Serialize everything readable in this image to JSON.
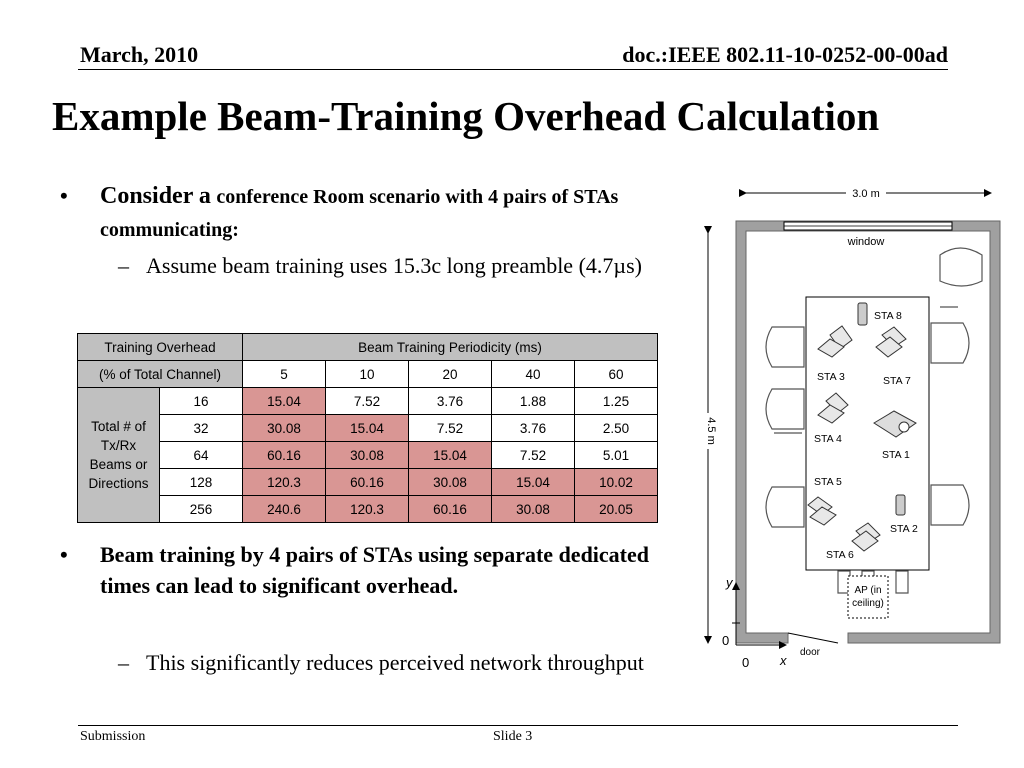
{
  "header": {
    "date": "March, 2010",
    "doc": "doc.:IEEE 802.11-10-0252-00-00ad"
  },
  "title": "Example Beam-Training Overhead Calculation",
  "bullet1": {
    "w1": "Consider",
    "w2": "a",
    "rest": "conference Room scenario with 4 pairs of STAs communicating:"
  },
  "sub1": "Assume beam training uses 15.3c long preamble (4.7µs)",
  "table": {
    "h1": "Training Overhead",
    "h2": "(% of Total Channel)",
    "periodicity": "Beam Training  Periodicity (ms)",
    "periods": [
      "5",
      "10",
      "20",
      "40",
      "60"
    ],
    "rowlabel": [
      "Total # of",
      "Tx/Rx",
      "Beams or",
      "Directions"
    ],
    "rows": [
      {
        "beams": "16",
        "vals": [
          "15.04",
          "7.52",
          "3.76",
          "1.88",
          "1.25"
        ]
      },
      {
        "beams": "32",
        "vals": [
          "30.08",
          "15.04",
          "7.52",
          "3.76",
          "2.50"
        ]
      },
      {
        "beams": "64",
        "vals": [
          "60.16",
          "30.08",
          "15.04",
          "7.52",
          "5.01"
        ]
      },
      {
        "beams": "128",
        "vals": [
          "120.3",
          "60.16",
          "30.08",
          "15.04",
          "10.02"
        ]
      },
      {
        "beams": "256",
        "vals": [
          "240.6",
          "120.3",
          "60.16",
          "30.08",
          "20.05"
        ]
      }
    ]
  },
  "bullet2": "Beam training by 4 pairs of STAs using separate dedicated times can lead to significant overhead.",
  "sub2": "This significantly reduces perceived network throughput",
  "diagram": {
    "width_label": "3.0 m",
    "height_label": "4.5 m",
    "window": "window",
    "door": "door",
    "ap": [
      "AP (in",
      "ceiling)"
    ],
    "axis_y": "y",
    "axis_x": "x",
    "origin_x": "0",
    "origin_y": "0",
    "stations": [
      "STA 8",
      "STA 3",
      "STA 7",
      "STA 4",
      "STA 1",
      "STA 5",
      "STA 2",
      "STA 6"
    ]
  },
  "footer": {
    "left": "Submission",
    "slide": "Slide 3"
  },
  "colors": {
    "highlight": "#d99694",
    "header_grey": "#c0c0c0",
    "wall": "#a0a0a0"
  }
}
